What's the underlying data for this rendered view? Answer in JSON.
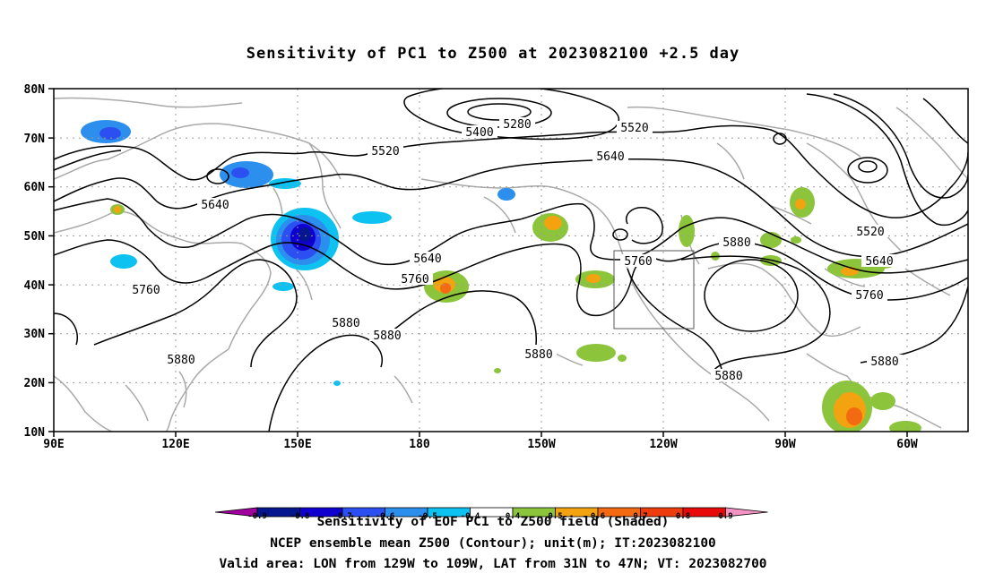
{
  "title": "Sensitivity of PC1 to Z500 at 2023082100 +2.5 day",
  "lat_labels": [
    "10N",
    "20N",
    "30N",
    "40N",
    "50N",
    "60N",
    "70N",
    "80N"
  ],
  "lon_labels": [
    "90E",
    "120E",
    "150E",
    "180",
    "150W",
    "120W",
    "90W",
    "60W"
  ],
  "contour_labels": [
    {
      "text": "5280"
    },
    {
      "text": "5400"
    },
    {
      "text": "5520"
    },
    {
      "text": "5520"
    },
    {
      "text": "5640"
    },
    {
      "text": "5640"
    },
    {
      "text": "5640"
    },
    {
      "text": "5760"
    },
    {
      "text": "5760"
    },
    {
      "text": "5760"
    },
    {
      "text": "5760"
    },
    {
      "text": "5880"
    },
    {
      "text": "5880"
    },
    {
      "text": "5880"
    },
    {
      "text": "5880"
    },
    {
      "text": "5880"
    },
    {
      "text": "5880"
    },
    {
      "text": "5880"
    },
    {
      "text": "5520"
    },
    {
      "text": "5640"
    }
  ],
  "colorbar": {
    "ticks": [
      "-0.9",
      "-0.8",
      "-0.7",
      "-0.6",
      "-0.5",
      "-0.4",
      "0.4",
      "0.5",
      "0.6",
      "0.7",
      "0.8",
      "0.9"
    ],
    "colors": [
      "#a0009e",
      "#06168f",
      "#0f00d0",
      "#2b4ff0",
      "#2c8fee",
      "#0dc2f0",
      "#ffffff",
      "#8cc43c",
      "#f3a30f",
      "#f36a12",
      "#ef3c0c",
      "#e80a0a",
      "#f393c3"
    ]
  },
  "colorbar_title": "Sensitivity of EOF PC1 to Z500 field (Shaded)",
  "footer_line1": "NCEP ensemble mean Z500 (Contour); unit(m); IT:2023082100",
  "footer_line2": "Valid area: LON from 129W to 109W, LAT from 31N to 47N; VT: 2023082700"
}
